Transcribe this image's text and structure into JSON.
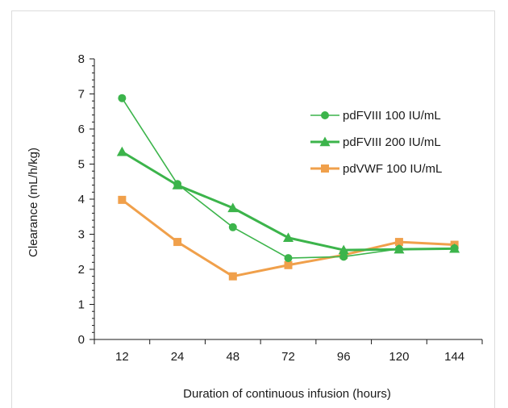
{
  "chart_data": {
    "type": "line",
    "categories": [
      "12",
      "24",
      "48",
      "72",
      "96",
      "120",
      "144"
    ],
    "xlabel": "Duration of continuous infusion  (hours)",
    "ylabel": "Clearance (mL/h/kg)",
    "ylim": [
      0,
      8
    ],
    "yticks": [
      0,
      1,
      2,
      3,
      4,
      5,
      6,
      7,
      8
    ],
    "grid": false,
    "legend_position": "right",
    "series": [
      {
        "name": "pdFVIII 100 IU/mL",
        "values": [
          6.88,
          4.43,
          3.2,
          2.32,
          2.36,
          2.58,
          2.6
        ],
        "color": "#3cb44b",
        "marker": "circle"
      },
      {
        "name": "pdFVIII 200 IU/mL",
        "values": [
          5.35,
          4.4,
          3.75,
          2.9,
          2.55,
          2.57,
          2.59
        ],
        "color": "#3cb44b",
        "marker": "triangle"
      },
      {
        "name": "pdVWF 100 IU/mL",
        "values": [
          3.98,
          2.78,
          1.8,
          2.12,
          2.41,
          2.78,
          2.7
        ],
        "color": "#f0a04b",
        "marker": "square"
      }
    ]
  }
}
